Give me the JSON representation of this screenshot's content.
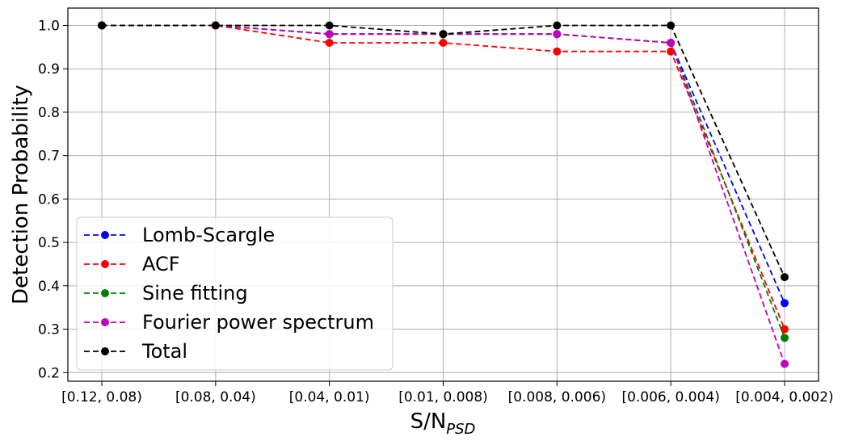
{
  "chart_data": {
    "type": "line",
    "title": "",
    "xlabel_main": "S/N",
    "xlabel_sub": "PSD",
    "ylabel": "Detection Probability",
    "categories": [
      "[0.12, 0.08)",
      "[0.08, 0.04)",
      "[0.04, 0.01)",
      "[0.01, 0.008)",
      "[0.008, 0.006)",
      "[0.006, 0.004)",
      "[0.004, 0.002)"
    ],
    "ylim": [
      0.18,
      1.04
    ],
    "yticks": [
      0.2,
      0.3,
      0.4,
      0.5,
      0.6,
      0.7,
      0.8,
      0.9,
      1.0
    ],
    "ytick_labels": [
      "0.2",
      "0.3",
      "0.4",
      "0.5",
      "0.6",
      "0.7",
      "0.8",
      "0.9",
      "1.0"
    ],
    "grid": true,
    "legend_position": "lower-left",
    "series": [
      {
        "name": "Lomb-Scargle",
        "color": "#0000ff",
        "values": [
          1.0,
          1.0,
          0.98,
          0.98,
          0.98,
          0.96,
          0.36
        ]
      },
      {
        "name": "ACF",
        "color": "#ff0000",
        "values": [
          1.0,
          1.0,
          0.96,
          0.96,
          0.94,
          0.94,
          0.3
        ]
      },
      {
        "name": "Sine fitting",
        "color": "#008000",
        "values": [
          1.0,
          1.0,
          0.98,
          0.98,
          0.98,
          0.96,
          0.28
        ]
      },
      {
        "name": "Fourier power spectrum",
        "color": "#bf00bf",
        "values": [
          1.0,
          1.0,
          0.98,
          0.98,
          0.98,
          0.96,
          0.22
        ]
      },
      {
        "name": "Total",
        "color": "#000000",
        "values": [
          1.0,
          1.0,
          1.0,
          0.98,
          1.0,
          1.0,
          0.42
        ]
      }
    ]
  }
}
